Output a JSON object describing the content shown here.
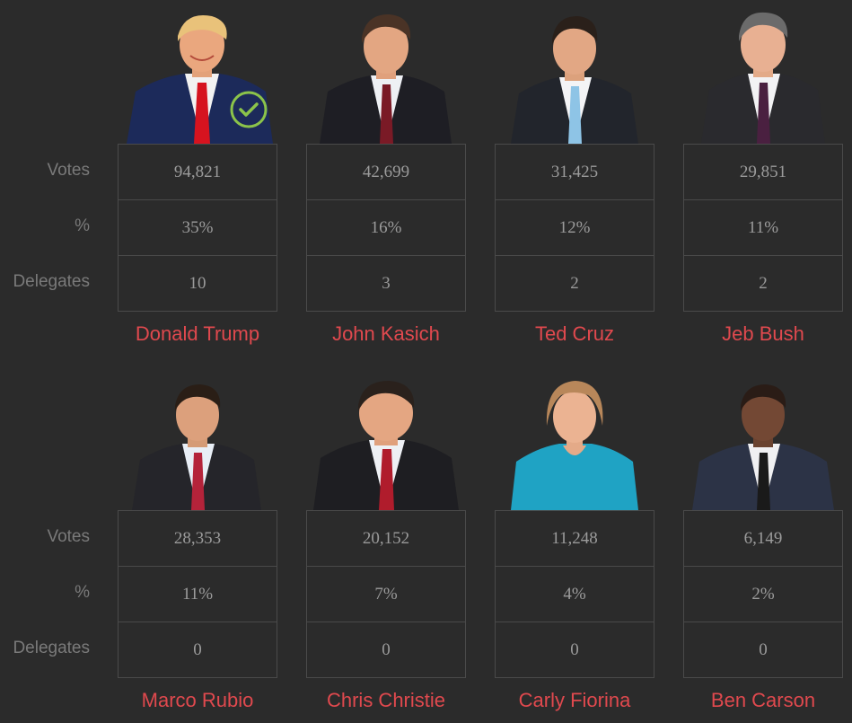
{
  "labels": {
    "votes": "Votes",
    "percent": "%",
    "delegates": "Delegates"
  },
  "colors": {
    "background": "#2b2b2b",
    "name": "#e0494e",
    "value": "#9b9b9b",
    "label": "#7a7a7a",
    "border": "#4a4a4a",
    "winner_check": "#8bc34a"
  },
  "candidates": [
    {
      "name": "Donald Trump",
      "votes": "94,821",
      "percent": "35%",
      "delegates": "10",
      "winner": true,
      "icon": "winner-check-icon"
    },
    {
      "name": "John Kasich",
      "votes": "42,699",
      "percent": "16%",
      "delegates": "3",
      "winner": false
    },
    {
      "name": "Ted Cruz",
      "votes": "31,425",
      "percent": "12%",
      "delegates": "2",
      "winner": false
    },
    {
      "name": "Jeb Bush",
      "votes": "29,851",
      "percent": "11%",
      "delegates": "2",
      "winner": false
    },
    {
      "name": "Marco Rubio",
      "votes": "28,353",
      "percent": "11%",
      "delegates": "0",
      "winner": false
    },
    {
      "name": "Chris Christie",
      "votes": "20,152",
      "percent": "7%",
      "delegates": "0",
      "winner": false
    },
    {
      "name": "Carly Fiorina",
      "votes": "11,248",
      "percent": "4%",
      "delegates": "0",
      "winner": false
    },
    {
      "name": "Ben Carson",
      "votes": "6,149",
      "percent": "2%",
      "delegates": "0",
      "winner": false
    }
  ]
}
